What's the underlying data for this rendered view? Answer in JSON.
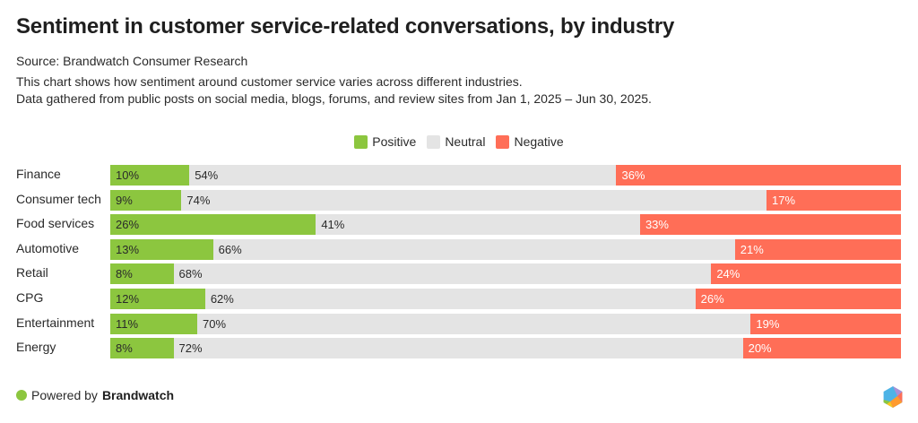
{
  "header": {
    "title": "Sentiment in customer service-related conversations, by industry",
    "source": "Source: Brandwatch Consumer Research",
    "description_line1": "This chart shows how sentiment around customer service varies across different industries.",
    "description_line2": "Data gathered from public posts on social media, blogs, forums, and review sites from Jan 1, 2025 – Jun 30, 2025."
  },
  "colors": {
    "positive": "#8cc63f",
    "neutral": "#e4e4e4",
    "negative": "#ff6e57",
    "text_dark": "#2a2a2a",
    "text_light": "#ffffff"
  },
  "footer": {
    "prefix": "Powered by",
    "brand": "Brandwatch",
    "logo_icon": "brandwatch-hexagon-logo-icon"
  },
  "chart_data": {
    "type": "bar",
    "orientation": "horizontal",
    "stacked": "100%",
    "title": "Sentiment in customer service-related conversations, by industry",
    "xlabel": "",
    "ylabel": "",
    "xlim": [
      0,
      100
    ],
    "grid": false,
    "legend_position": "top-center",
    "categories": [
      "Finance",
      "Consumer tech",
      "Food services",
      "Automotive",
      "Retail",
      "CPG",
      "Entertainment",
      "Energy"
    ],
    "series": [
      {
        "name": "Positive",
        "color": "#8cc63f",
        "values": [
          10,
          9,
          26,
          13,
          8,
          12,
          11,
          8
        ]
      },
      {
        "name": "Neutral",
        "color": "#e4e4e4",
        "values": [
          54,
          74,
          41,
          66,
          68,
          62,
          70,
          72
        ]
      },
      {
        "name": "Negative",
        "color": "#ff6e57",
        "values": [
          36,
          17,
          33,
          21,
          24,
          26,
          19,
          20
        ]
      }
    ],
    "value_suffix": "%"
  }
}
